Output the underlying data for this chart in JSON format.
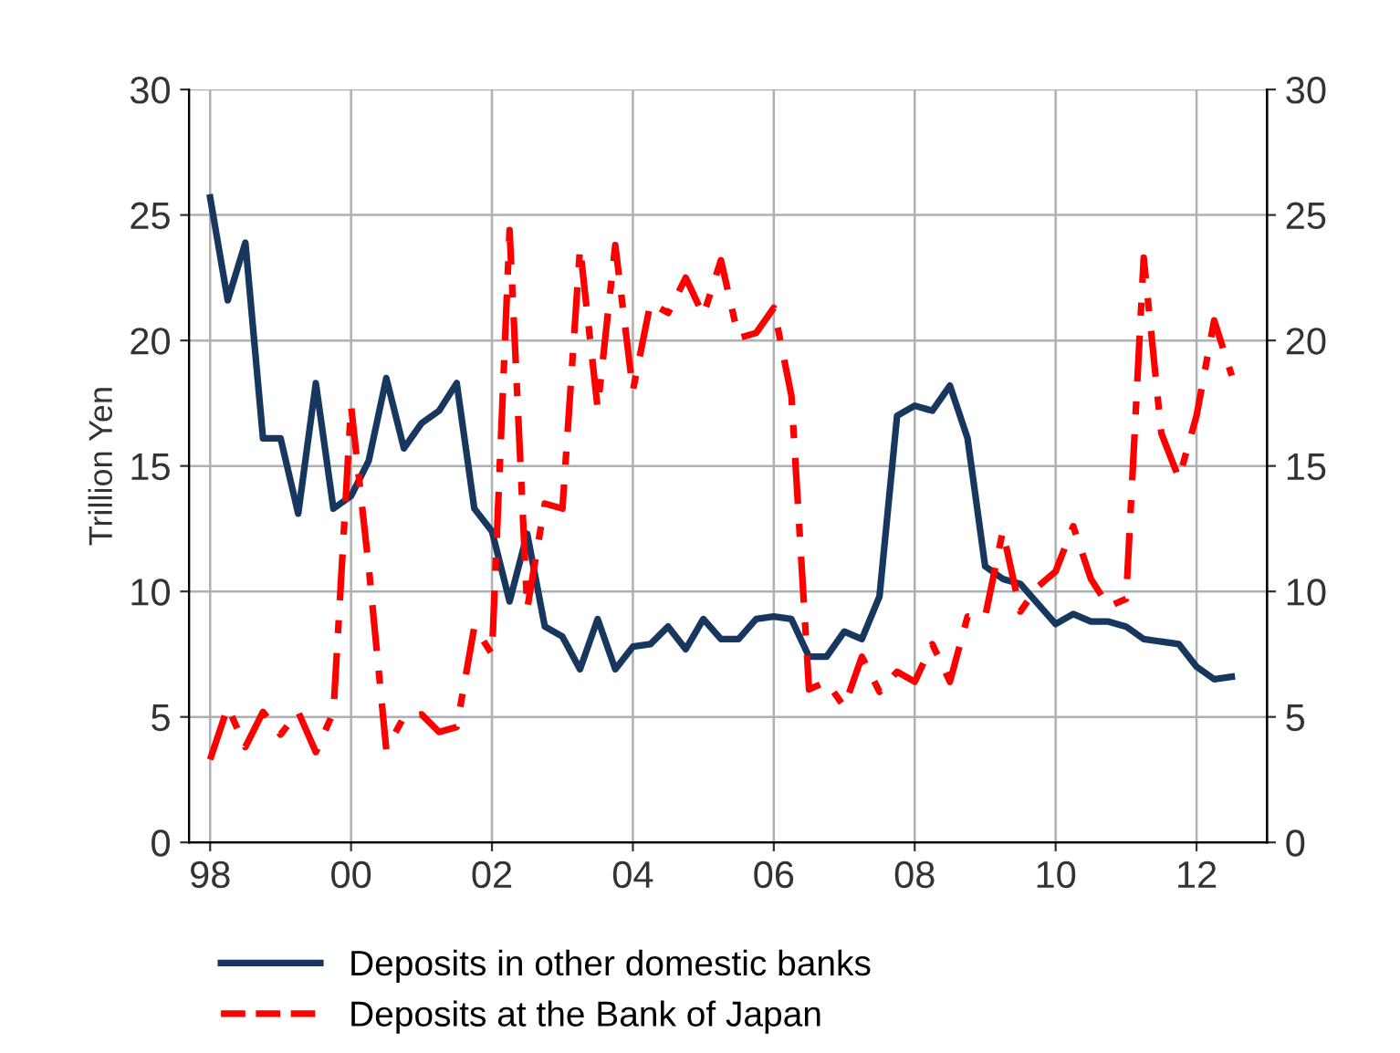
{
  "chart_data": {
    "type": "line",
    "ylabel": "Trillion Yen",
    "x": [
      1998.0,
      1998.25,
      1998.5,
      1998.75,
      1999.0,
      1999.25,
      1999.5,
      1999.75,
      2000.0,
      2000.25,
      2000.5,
      2000.75,
      2001.0,
      2001.25,
      2001.5,
      2001.75,
      2002.0,
      2002.25,
      2002.5,
      2002.75,
      2003.0,
      2003.25,
      2003.5,
      2003.75,
      2004.0,
      2004.25,
      2004.5,
      2004.75,
      2005.0,
      2005.25,
      2005.5,
      2005.75,
      2006.0,
      2006.25,
      2006.5,
      2006.75,
      2007.0,
      2007.25,
      2007.5,
      2007.75,
      2008.0,
      2008.25,
      2008.5,
      2008.75,
      2009.0,
      2009.25,
      2009.5,
      2009.75,
      2010.0,
      2010.25,
      2010.5,
      2010.75,
      2011.0,
      2011.25,
      2011.5,
      2011.75,
      2012.0,
      2012.25,
      2012.5
    ],
    "series": [
      {
        "name": "Deposits in other domestic banks",
        "color": "#17375e",
        "line_style": "solid",
        "values": [
          25.7,
          21.6,
          23.9,
          16.1,
          16.1,
          13.1,
          18.3,
          13.3,
          13.8,
          15.2,
          18.5,
          15.7,
          16.7,
          17.2,
          18.3,
          13.3,
          12.4,
          9.6,
          12.3,
          8.6,
          8.2,
          6.9,
          8.9,
          6.9,
          7.8,
          7.9,
          8.6,
          7.7,
          8.9,
          8.1,
          8.1,
          8.9,
          9.0,
          8.9,
          7.4,
          7.4,
          8.4,
          8.1,
          9.8,
          17.0,
          17.4,
          17.2,
          18.2,
          16.1,
          11.0,
          10.5,
          10.3,
          9.5,
          8.7,
          9.1,
          8.8,
          8.8,
          8.6,
          8.1,
          8.0,
          7.9,
          7.0,
          6.5,
          6.6
        ]
      },
      {
        "name": "Deposits at the Bank of Japan",
        "color": "#ff0000",
        "line_style": "dashdot",
        "values": [
          3.3,
          5.4,
          3.8,
          5.2,
          4.3,
          5.2,
          3.6,
          5.2,
          17.4,
          11.0,
          3.7,
          5.0,
          5.1,
          4.4,
          4.6,
          8.6,
          7.5,
          24.4,
          9.3,
          13.5,
          13.3,
          23.7,
          17.3,
          23.8,
          18.0,
          21.5,
          21.1,
          22.5,
          21.0,
          23.2,
          20.1,
          20.3,
          21.3,
          17.8,
          6.1,
          6.4,
          5.4,
          7.4,
          6.0,
          6.8,
          6.4,
          7.9,
          6.4,
          9.0,
          9.0,
          12.4,
          9.2,
          10.2,
          10.8,
          12.6,
          10.5,
          9.4,
          9.7,
          23.3,
          16.3,
          14.5,
          17.0,
          20.8,
          18.6
        ]
      }
    ],
    "xlim": [
      1997.7,
      2013.0
    ],
    "xticks": [
      {
        "value": 1998,
        "label": "98"
      },
      {
        "value": 2000,
        "label": "00"
      },
      {
        "value": 2002,
        "label": "02"
      },
      {
        "value": 2004,
        "label": "04"
      },
      {
        "value": 2006,
        "label": "06"
      },
      {
        "value": 2008,
        "label": "08"
      },
      {
        "value": 2010,
        "label": "10"
      },
      {
        "value": 2012,
        "label": "12"
      }
    ],
    "ylim": [
      0,
      30
    ],
    "yticks": [
      0,
      5,
      10,
      15,
      20,
      25,
      30
    ],
    "y2lim": [
      0,
      30
    ],
    "y2ticks": [
      0,
      5,
      10,
      15,
      20,
      25,
      30
    ],
    "grid": true,
    "legend": "bottom",
    "marker": "none"
  }
}
